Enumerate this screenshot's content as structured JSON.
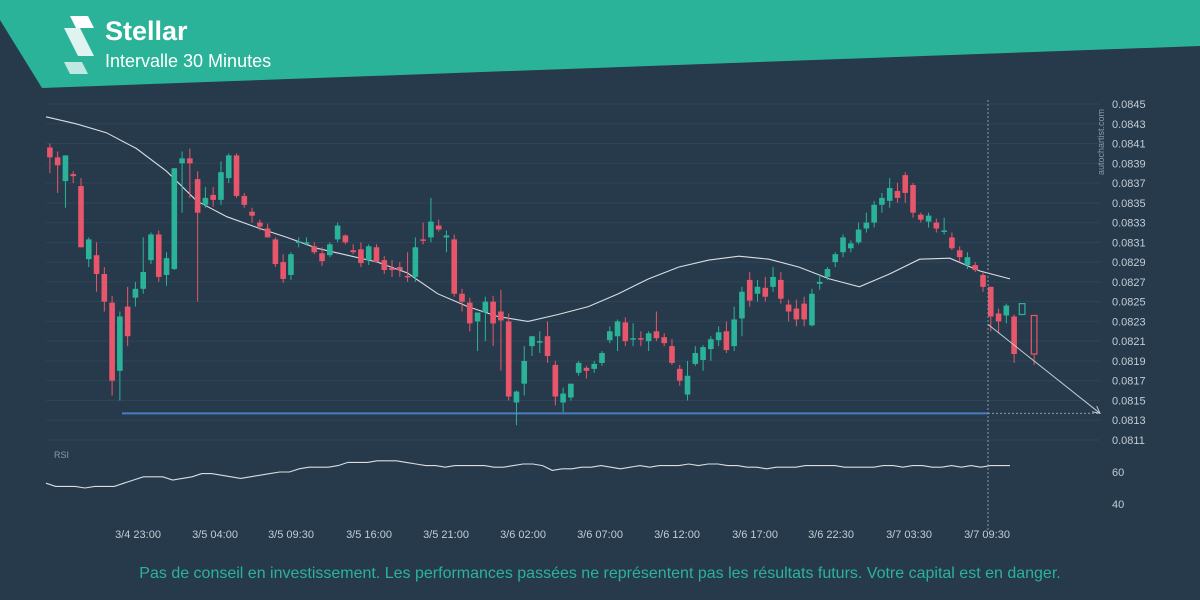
{
  "header": {
    "title": "Stellar",
    "subtitle": "Intervalle 30 Minutes"
  },
  "watermark": "autochartist.com",
  "disclaimer": "Pas de conseil en investissement. Les performances passées ne représentent pas les résultats futurs. Votre capital est en danger.",
  "colors": {
    "background": "#263a4b",
    "banner": "#2bb39a",
    "up_candle": "#2bb39a",
    "down_candle": "#e8566b",
    "moving_average": "#d9dde2",
    "support_line": "#4a7cc2",
    "disclaimer_text": "#2bb39a"
  },
  "chart_data": [
    {
      "type": "candlestick",
      "ylim": [
        0.0811,
        0.0845
      ],
      "y_ticks": [
        "0.0845",
        "0.0843",
        "0.0841",
        "0.0839",
        "0.0837",
        "0.0835",
        "0.0833",
        "0.0831",
        "0.0829",
        "0.0827",
        "0.0825",
        "0.0823",
        "0.0821",
        "0.0819",
        "0.0817",
        "0.0815",
        "0.0813",
        "0.0811"
      ],
      "x_ticks": [
        "3/4 23:00",
        "3/5 04:00",
        "3/5 09:30",
        "3/5 16:00",
        "3/5 21:00",
        "3/6 02:00",
        "3/6 07:00",
        "3/6 12:00",
        "3/6 17:00",
        "3/6 22:30",
        "3/7 03:30",
        "3/7 09:30"
      ],
      "support_level": 0.08137,
      "projection": {
        "from": 0.08227,
        "to": 0.08137
      },
      "candles": [
        {
          "o": 0.08406,
          "h": 0.0841,
          "l": 0.0838,
          "c": 0.08396
        },
        {
          "o": 0.08396,
          "h": 0.08402,
          "l": 0.0836,
          "c": 0.08388
        },
        {
          "o": 0.08372,
          "h": 0.08398,
          "l": 0.08345,
          "c": 0.08398
        },
        {
          "o": 0.08379,
          "h": 0.08382,
          "l": 0.0837,
          "c": 0.08377
        },
        {
          "o": 0.08367,
          "h": 0.08375,
          "l": 0.08305,
          "c": 0.08305
        },
        {
          "o": 0.08293,
          "h": 0.08315,
          "l": 0.08285,
          "c": 0.08313
        },
        {
          "o": 0.08297,
          "h": 0.0831,
          "l": 0.0826,
          "c": 0.08278
        },
        {
          "o": 0.08278,
          "h": 0.08285,
          "l": 0.0824,
          "c": 0.0825
        },
        {
          "o": 0.08249,
          "h": 0.08256,
          "l": 0.08155,
          "c": 0.0817
        },
        {
          "o": 0.0818,
          "h": 0.0824,
          "l": 0.0815,
          "c": 0.08235
        },
        {
          "o": 0.08245,
          "h": 0.08265,
          "l": 0.08205,
          "c": 0.08215
        },
        {
          "o": 0.08254,
          "h": 0.0827,
          "l": 0.08245,
          "c": 0.08263
        },
        {
          "o": 0.08263,
          "h": 0.08315,
          "l": 0.08258,
          "c": 0.0828
        },
        {
          "o": 0.08292,
          "h": 0.0832,
          "l": 0.08288,
          "c": 0.08318
        },
        {
          "o": 0.08318,
          "h": 0.08322,
          "l": 0.0827,
          "c": 0.08275
        },
        {
          "o": 0.08277,
          "h": 0.083,
          "l": 0.08266,
          "c": 0.08294
        },
        {
          "o": 0.08283,
          "h": 0.08385,
          "l": 0.08282,
          "c": 0.08385
        },
        {
          "o": 0.0839,
          "h": 0.08402,
          "l": 0.0834,
          "c": 0.08395
        },
        {
          "o": 0.08395,
          "h": 0.08405,
          "l": 0.08355,
          "c": 0.0839
        },
        {
          "o": 0.08374,
          "h": 0.08382,
          "l": 0.0825,
          "c": 0.0834
        },
        {
          "o": 0.08348,
          "h": 0.08366,
          "l": 0.08345,
          "c": 0.08355
        },
        {
          "o": 0.08358,
          "h": 0.08366,
          "l": 0.08346,
          "c": 0.08353
        },
        {
          "o": 0.08353,
          "h": 0.08392,
          "l": 0.08348,
          "c": 0.08381
        },
        {
          "o": 0.08375,
          "h": 0.084,
          "l": 0.0837,
          "c": 0.08398
        },
        {
          "o": 0.08398,
          "h": 0.084,
          "l": 0.08355,
          "c": 0.08357
        },
        {
          "o": 0.08357,
          "h": 0.0836,
          "l": 0.08345,
          "c": 0.08348
        },
        {
          "o": 0.08341,
          "h": 0.08345,
          "l": 0.0833,
          "c": 0.08337
        },
        {
          "o": 0.0833,
          "h": 0.08333,
          "l": 0.08322,
          "c": 0.08326
        },
        {
          "o": 0.08324,
          "h": 0.08329,
          "l": 0.08315,
          "c": 0.08315
        },
        {
          "o": 0.08313,
          "h": 0.08315,
          "l": 0.08285,
          "c": 0.08288
        },
        {
          "o": 0.0829,
          "h": 0.08298,
          "l": 0.08269,
          "c": 0.08273
        },
        {
          "o": 0.08277,
          "h": 0.083,
          "l": 0.08272,
          "c": 0.08298
        },
        {
          "o": 0.0831,
          "h": 0.08315,
          "l": 0.08305,
          "c": 0.08311
        },
        {
          "o": 0.08309,
          "h": 0.08315,
          "l": 0.08307,
          "c": 0.0831
        },
        {
          "o": 0.08306,
          "h": 0.0831,
          "l": 0.08298,
          "c": 0.083
        },
        {
          "o": 0.08299,
          "h": 0.08305,
          "l": 0.08286,
          "c": 0.08291
        },
        {
          "o": 0.08297,
          "h": 0.0831,
          "l": 0.08295,
          "c": 0.08308
        },
        {
          "o": 0.08313,
          "h": 0.0833,
          "l": 0.0831,
          "c": 0.08327
        },
        {
          "o": 0.08317,
          "h": 0.08318,
          "l": 0.08308,
          "c": 0.0831
        },
        {
          "o": 0.08302,
          "h": 0.08308,
          "l": 0.08298,
          "c": 0.083
        },
        {
          "o": 0.08303,
          "h": 0.0831,
          "l": 0.08285,
          "c": 0.08289
        },
        {
          "o": 0.08292,
          "h": 0.08308,
          "l": 0.08287,
          "c": 0.08306
        },
        {
          "o": 0.08305,
          "h": 0.08308,
          "l": 0.0829,
          "c": 0.0829
        },
        {
          "o": 0.08292,
          "h": 0.08296,
          "l": 0.08278,
          "c": 0.08282
        },
        {
          "o": 0.08284,
          "h": 0.08292,
          "l": 0.08275,
          "c": 0.08282
        },
        {
          "o": 0.08285,
          "h": 0.0829,
          "l": 0.08275,
          "c": 0.08282
        },
        {
          "o": 0.08276,
          "h": 0.083,
          "l": 0.0827,
          "c": 0.08275
        },
        {
          "o": 0.08275,
          "h": 0.08315,
          "l": 0.0827,
          "c": 0.08305
        },
        {
          "o": 0.08313,
          "h": 0.0833,
          "l": 0.08308,
          "c": 0.08312
        },
        {
          "o": 0.08315,
          "h": 0.08355,
          "l": 0.0831,
          "c": 0.08331
        },
        {
          "o": 0.08327,
          "h": 0.08333,
          "l": 0.08321,
          "c": 0.08323
        },
        {
          "o": 0.08315,
          "h": 0.08322,
          "l": 0.083,
          "c": 0.08317
        },
        {
          "o": 0.08313,
          "h": 0.08318,
          "l": 0.08255,
          "c": 0.08258
        },
        {
          "o": 0.08258,
          "h": 0.08263,
          "l": 0.0824,
          "c": 0.0825
        },
        {
          "o": 0.08249,
          "h": 0.08254,
          "l": 0.0822,
          "c": 0.08228
        },
        {
          "o": 0.0823,
          "h": 0.08238,
          "l": 0.082,
          "c": 0.08239
        },
        {
          "o": 0.08239,
          "h": 0.08255,
          "l": 0.0821,
          "c": 0.0825
        },
        {
          "o": 0.0825,
          "h": 0.08256,
          "l": 0.08205,
          "c": 0.08228
        },
        {
          "o": 0.0824,
          "h": 0.08262,
          "l": 0.0818,
          "c": 0.08231
        },
        {
          "o": 0.0823,
          "h": 0.08238,
          "l": 0.0815,
          "c": 0.08154
        },
        {
          "o": 0.08148,
          "h": 0.0816,
          "l": 0.08125,
          "c": 0.08159
        },
        {
          "o": 0.08167,
          "h": 0.08205,
          "l": 0.08155,
          "c": 0.0819
        },
        {
          "o": 0.08205,
          "h": 0.08215,
          "l": 0.08195,
          "c": 0.08215
        },
        {
          "o": 0.0821,
          "h": 0.0822,
          "l": 0.08198,
          "c": 0.0821
        },
        {
          "o": 0.08215,
          "h": 0.0823,
          "l": 0.08188,
          "c": 0.08195
        },
        {
          "o": 0.08186,
          "h": 0.0819,
          "l": 0.08145,
          "c": 0.08154
        },
        {
          "o": 0.08148,
          "h": 0.08163,
          "l": 0.08138,
          "c": 0.08157
        },
        {
          "o": 0.08153,
          "h": 0.08167,
          "l": 0.0815,
          "c": 0.08167
        },
        {
          "o": 0.08178,
          "h": 0.0819,
          "l": 0.08175,
          "c": 0.08188
        },
        {
          "o": 0.08183,
          "h": 0.08185,
          "l": 0.08172,
          "c": 0.0818
        },
        {
          "o": 0.08182,
          "h": 0.0819,
          "l": 0.08178,
          "c": 0.08187
        },
        {
          "o": 0.08188,
          "h": 0.082,
          "l": 0.08185,
          "c": 0.08198
        },
        {
          "o": 0.08211,
          "h": 0.08225,
          "l": 0.08208,
          "c": 0.0822
        },
        {
          "o": 0.08215,
          "h": 0.08232,
          "l": 0.082,
          "c": 0.0823
        },
        {
          "o": 0.08229,
          "h": 0.08234,
          "l": 0.08205,
          "c": 0.0821
        },
        {
          "o": 0.08212,
          "h": 0.08228,
          "l": 0.08205,
          "c": 0.08213
        },
        {
          "o": 0.08213,
          "h": 0.0822,
          "l": 0.08205,
          "c": 0.08212
        },
        {
          "o": 0.0821,
          "h": 0.0822,
          "l": 0.082,
          "c": 0.08218
        },
        {
          "o": 0.0822,
          "h": 0.0824,
          "l": 0.0821,
          "c": 0.08213
        },
        {
          "o": 0.08214,
          "h": 0.08218,
          "l": 0.08205,
          "c": 0.08208
        },
        {
          "o": 0.08205,
          "h": 0.08212,
          "l": 0.08186,
          "c": 0.08188
        },
        {
          "o": 0.08182,
          "h": 0.08186,
          "l": 0.08165,
          "c": 0.0817
        },
        {
          "o": 0.08156,
          "h": 0.0819,
          "l": 0.0815,
          "c": 0.08175
        },
        {
          "o": 0.08187,
          "h": 0.08205,
          "l": 0.08185,
          "c": 0.08198
        },
        {
          "o": 0.08191,
          "h": 0.08206,
          "l": 0.0818,
          "c": 0.08204
        },
        {
          "o": 0.08202,
          "h": 0.08215,
          "l": 0.0819,
          "c": 0.08212
        },
        {
          "o": 0.08211,
          "h": 0.08225,
          "l": 0.08205,
          "c": 0.08219
        },
        {
          "o": 0.0822,
          "h": 0.0823,
          "l": 0.08198,
          "c": 0.08201
        },
        {
          "o": 0.08205,
          "h": 0.08245,
          "l": 0.082,
          "c": 0.08232
        },
        {
          "o": 0.08233,
          "h": 0.08265,
          "l": 0.08215,
          "c": 0.0826
        },
        {
          "o": 0.08272,
          "h": 0.0828,
          "l": 0.08245,
          "c": 0.08251
        },
        {
          "o": 0.08258,
          "h": 0.08272,
          "l": 0.0825,
          "c": 0.08265
        },
        {
          "o": 0.08264,
          "h": 0.08275,
          "l": 0.0825,
          "c": 0.08255
        },
        {
          "o": 0.08265,
          "h": 0.08285,
          "l": 0.0826,
          "c": 0.08275
        },
        {
          "o": 0.08272,
          "h": 0.0828,
          "l": 0.08248,
          "c": 0.08253
        },
        {
          "o": 0.08247,
          "h": 0.08252,
          "l": 0.0823,
          "c": 0.0824
        },
        {
          "o": 0.08243,
          "h": 0.08252,
          "l": 0.08225,
          "c": 0.08232
        },
        {
          "o": 0.08248,
          "h": 0.08255,
          "l": 0.08225,
          "c": 0.08232
        },
        {
          "o": 0.08226,
          "h": 0.08263,
          "l": 0.08225,
          "c": 0.08258
        },
        {
          "o": 0.08268,
          "h": 0.08278,
          "l": 0.08262,
          "c": 0.0827
        },
        {
          "o": 0.08275,
          "h": 0.08285,
          "l": 0.08272,
          "c": 0.08283
        },
        {
          "o": 0.0829,
          "h": 0.083,
          "l": 0.08285,
          "c": 0.08298
        },
        {
          "o": 0.083,
          "h": 0.08318,
          "l": 0.08295,
          "c": 0.08315
        },
        {
          "o": 0.08304,
          "h": 0.08312,
          "l": 0.083,
          "c": 0.08309
        },
        {
          "o": 0.0831,
          "h": 0.0833,
          "l": 0.08308,
          "c": 0.08323
        },
        {
          "o": 0.08324,
          "h": 0.0834,
          "l": 0.0832,
          "c": 0.0833
        },
        {
          "o": 0.0833,
          "h": 0.08352,
          "l": 0.08325,
          "c": 0.08348
        },
        {
          "o": 0.08348,
          "h": 0.0836,
          "l": 0.0834,
          "c": 0.08355
        },
        {
          "o": 0.08352,
          "h": 0.08375,
          "l": 0.08345,
          "c": 0.08365
        },
        {
          "o": 0.08362,
          "h": 0.0837,
          "l": 0.0835,
          "c": 0.08355
        },
        {
          "o": 0.08378,
          "h": 0.08381,
          "l": 0.0835,
          "c": 0.0836
        },
        {
          "o": 0.08368,
          "h": 0.0837,
          "l": 0.08335,
          "c": 0.0834
        },
        {
          "o": 0.08338,
          "h": 0.0834,
          "l": 0.0833,
          "c": 0.08333
        },
        {
          "o": 0.08331,
          "h": 0.0834,
          "l": 0.08325,
          "c": 0.08337
        },
        {
          "o": 0.0833,
          "h": 0.08334,
          "l": 0.0832,
          "c": 0.08324
        },
        {
          "o": 0.08322,
          "h": 0.08335,
          "l": 0.08318,
          "c": 0.08322
        },
        {
          "o": 0.08315,
          "h": 0.0832,
          "l": 0.08302,
          "c": 0.08304
        },
        {
          "o": 0.08302,
          "h": 0.08306,
          "l": 0.0829,
          "c": 0.08295
        },
        {
          "o": 0.08287,
          "h": 0.083,
          "l": 0.08283,
          "c": 0.08295
        },
        {
          "o": 0.08287,
          "h": 0.0829,
          "l": 0.0828,
          "c": 0.08282
        },
        {
          "o": 0.08277,
          "h": 0.0828,
          "l": 0.0826,
          "c": 0.08265
        },
        {
          "o": 0.08265,
          "h": 0.08265,
          "l": 0.0822,
          "c": 0.08235
        },
        {
          "o": 0.08238,
          "h": 0.08243,
          "l": 0.08218,
          "c": 0.0823
        },
        {
          "o": 0.08236,
          "h": 0.08248,
          "l": 0.08228,
          "c": 0.08246
        },
        {
          "o": 0.08235,
          "h": 0.08237,
          "l": 0.08188,
          "c": 0.08197
        }
      ],
      "moving_average": [
        0.08437,
        0.0843,
        0.08421,
        0.08405,
        0.08382,
        0.08352,
        0.08336,
        0.08325,
        0.08315,
        0.08304,
        0.08297,
        0.0829,
        0.08279,
        0.08258,
        0.08245,
        0.08235,
        0.0823,
        0.08237,
        0.08245,
        0.08258,
        0.08273,
        0.08285,
        0.08292,
        0.08296,
        0.08293,
        0.08285,
        0.08273,
        0.08265,
        0.08278,
        0.08293,
        0.08294,
        0.08281,
        0.08273
      ]
    },
    {
      "type": "line",
      "name": "RSI",
      "y_ticks": [
        "60",
        "40"
      ],
      "ylim": [
        35,
        75
      ],
      "values": [
        53,
        51,
        51,
        51,
        50,
        51,
        51,
        51,
        53,
        55,
        57,
        57,
        57,
        55,
        56,
        57,
        59,
        59,
        58,
        57,
        56,
        57,
        58,
        59,
        60,
        60,
        62,
        63,
        63,
        63,
        64,
        66,
        66,
        66,
        67,
        67,
        67,
        66,
        65,
        64,
        64,
        63,
        64,
        64,
        64,
        64,
        63,
        63,
        64,
        65,
        65,
        64,
        61,
        62,
        62,
        63,
        63,
        64,
        63,
        62,
        63,
        64,
        63,
        64,
        64,
        64,
        65,
        64,
        65,
        65,
        64,
        64,
        63,
        63,
        62,
        63,
        63,
        63,
        64,
        64,
        64,
        64,
        63,
        63,
        63,
        63,
        64,
        64,
        63,
        64,
        64,
        63,
        63,
        64,
        63,
        64,
        63,
        64,
        64,
        64
      ]
    }
  ]
}
